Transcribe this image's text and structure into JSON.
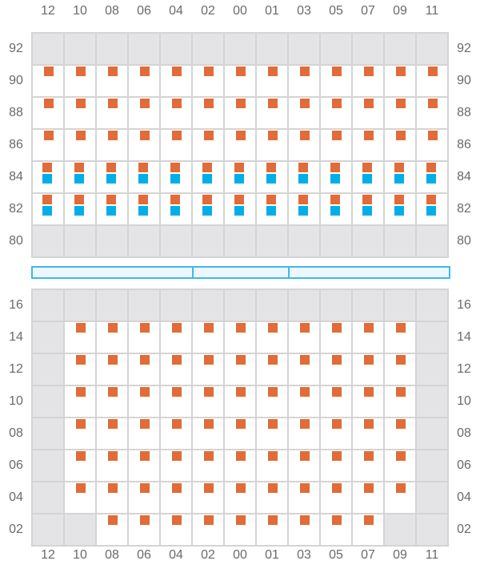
{
  "colors": {
    "occupied": "#e06c37",
    "secondary": "#00aee8",
    "unavailable": "#e4e4e6",
    "divider": "#3db9ef"
  },
  "columns": [
    "12",
    "10",
    "08",
    "06",
    "04",
    "02",
    "00",
    "01",
    "03",
    "05",
    "07",
    "09",
    "11"
  ],
  "upper": {
    "rows": [
      {
        "label": "92",
        "cells": [
          "g",
          "g",
          "g",
          "g",
          "g",
          "g",
          "g",
          "g",
          "g",
          "g",
          "g",
          "g",
          "g"
        ]
      },
      {
        "label": "90",
        "cells": [
          "o",
          "o",
          "o",
          "o",
          "o",
          "o",
          "o",
          "o",
          "o",
          "o",
          "o",
          "o",
          "o"
        ]
      },
      {
        "label": "88",
        "cells": [
          "o",
          "o",
          "o",
          "o",
          "o",
          "o",
          "o",
          "o",
          "o",
          "o",
          "o",
          "o",
          "o"
        ]
      },
      {
        "label": "86",
        "cells": [
          "o",
          "o",
          "o",
          "o",
          "o",
          "o",
          "o",
          "o",
          "o",
          "o",
          "o",
          "o",
          "o"
        ]
      },
      {
        "label": "84",
        "cells": [
          "ob",
          "ob",
          "ob",
          "ob",
          "ob",
          "ob",
          "ob",
          "ob",
          "ob",
          "ob",
          "ob",
          "ob",
          "ob"
        ]
      },
      {
        "label": "82",
        "cells": [
          "ob",
          "ob",
          "ob",
          "ob",
          "ob",
          "ob",
          "ob",
          "ob",
          "ob",
          "ob",
          "ob",
          "ob",
          "ob"
        ]
      },
      {
        "label": "80",
        "cells": [
          "g",
          "g",
          "g",
          "g",
          "g",
          "g",
          "g",
          "g",
          "g",
          "g",
          "g",
          "g",
          "g"
        ]
      }
    ]
  },
  "lower": {
    "rows": [
      {
        "label": "16",
        "cells": [
          "g",
          "g",
          "g",
          "g",
          "g",
          "g",
          "g",
          "g",
          "g",
          "g",
          "g",
          "g",
          "g"
        ]
      },
      {
        "label": "14",
        "cells": [
          "g",
          "o",
          "o",
          "o",
          "o",
          "o",
          "o",
          "o",
          "o",
          "o",
          "o",
          "o",
          "g"
        ]
      },
      {
        "label": "12",
        "cells": [
          "g",
          "o",
          "o",
          "o",
          "o",
          "o",
          "o",
          "o",
          "o",
          "o",
          "o",
          "o",
          "g"
        ]
      },
      {
        "label": "10",
        "cells": [
          "g",
          "o",
          "o",
          "o",
          "o",
          "o",
          "o",
          "o",
          "o",
          "o",
          "o",
          "o",
          "g"
        ]
      },
      {
        "label": "08",
        "cells": [
          "g",
          "o",
          "o",
          "o",
          "o",
          "o",
          "o",
          "o",
          "o",
          "o",
          "o",
          "o",
          "g"
        ]
      },
      {
        "label": "06",
        "cells": [
          "g",
          "o",
          "o",
          "o",
          "o",
          "o",
          "o",
          "o",
          "o",
          "o",
          "o",
          "o",
          "g"
        ]
      },
      {
        "label": "04",
        "cells": [
          "g",
          "o",
          "o",
          "o",
          "o",
          "o",
          "o",
          "o",
          "o",
          "o",
          "o",
          "o",
          "g"
        ]
      },
      {
        "label": "02",
        "cells": [
          "g",
          "g",
          "o",
          "o",
          "o",
          "o",
          "o",
          "o",
          "o",
          "o",
          "o",
          "g",
          "g"
        ]
      }
    ]
  }
}
